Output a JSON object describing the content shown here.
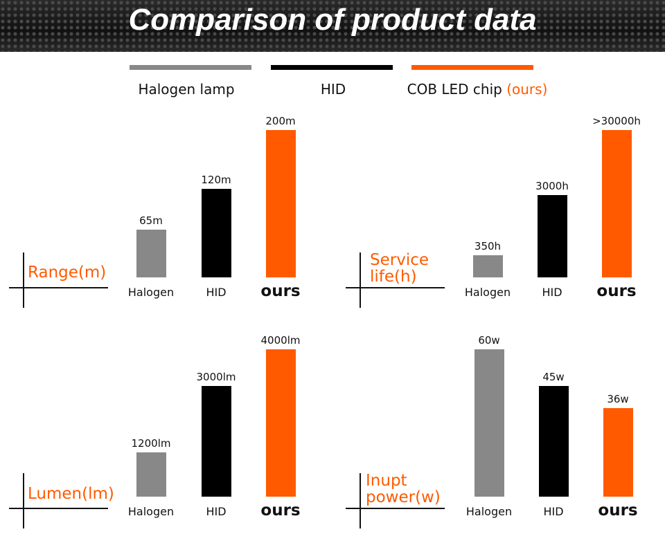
{
  "title": "Comparison of product data",
  "legend": [
    {
      "label": "Halogen lamp",
      "suffix": "",
      "color": "#888888"
    },
    {
      "label": "HID",
      "suffix": "",
      "color": "#000000"
    },
    {
      "label": "COB LED chip ",
      "suffix": "(ours)",
      "color": "#ff5a00"
    }
  ],
  "colors": {
    "halogen": "#888888",
    "hid": "#000000",
    "ours": "#ff5a00",
    "accent": "#ff5a00"
  },
  "chart_data": [
    {
      "type": "bar",
      "metric_label": [
        "Range(m)"
      ],
      "categories": [
        "Halogen",
        "HID",
        "ours"
      ],
      "values": [
        65,
        120,
        200
      ],
      "value_labels": [
        "65m",
        "120m",
        "200m"
      ]
    },
    {
      "type": "bar",
      "metric_label": [
        "Service",
        "life(h)"
      ],
      "categories": [
        "Halogen",
        "HID",
        "ours"
      ],
      "values": [
        350,
        3000,
        30000
      ],
      "value_labels": [
        "350h",
        "3000h",
        ">30000h"
      ]
    },
    {
      "type": "bar",
      "metric_label": [
        "Lumen(lm)"
      ],
      "categories": [
        "Halogen",
        "HID",
        "ours"
      ],
      "values": [
        1200,
        3000,
        4000
      ],
      "value_labels": [
        "1200lm",
        "3000lm",
        "4000lm"
      ]
    },
    {
      "type": "bar",
      "metric_label": [
        "Inupt",
        "power(w)"
      ],
      "categories": [
        "Halogen",
        "HID",
        "ours"
      ],
      "values": [
        60,
        45,
        36
      ],
      "value_labels": [
        "60w",
        "45w",
        "36w"
      ]
    }
  ]
}
